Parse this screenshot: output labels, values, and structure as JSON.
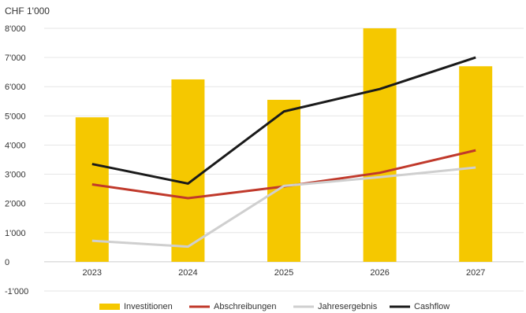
{
  "chart_data": {
    "type": "bar",
    "unit_label": "CHF 1'000",
    "categories": [
      "2023",
      "2024",
      "2025",
      "2026",
      "2027"
    ],
    "ylim": [
      -1000,
      8000
    ],
    "yticks": [
      -1000,
      0,
      1000,
      2000,
      3000,
      4000,
      5000,
      6000,
      7000,
      8000
    ],
    "ytick_labels": [
      "-1'000",
      "0",
      "1'000",
      "2'000",
      "3'000",
      "4'000",
      "5'000",
      "6'000",
      "7'000",
      "8'000"
    ],
    "grid": true,
    "legend_position": "bottom",
    "series": [
      {
        "name": "Investitionen",
        "kind": "bar",
        "color": "#f5c800",
        "values": [
          4950,
          6250,
          5550,
          8000,
          6700
        ]
      },
      {
        "name": "Abschreibungen",
        "kind": "line",
        "color": "#c0392b",
        "values": [
          2650,
          2180,
          2580,
          3050,
          3820
        ]
      },
      {
        "name": "Jahresergebnis",
        "kind": "line",
        "color": "#cfcfcf",
        "values": [
          720,
          520,
          2600,
          2900,
          3230
        ]
      },
      {
        "name": "Cashflow",
        "kind": "line",
        "color": "#1a1a1a",
        "values": [
          3350,
          2680,
          5150,
          5920,
          7000
        ]
      }
    ]
  }
}
